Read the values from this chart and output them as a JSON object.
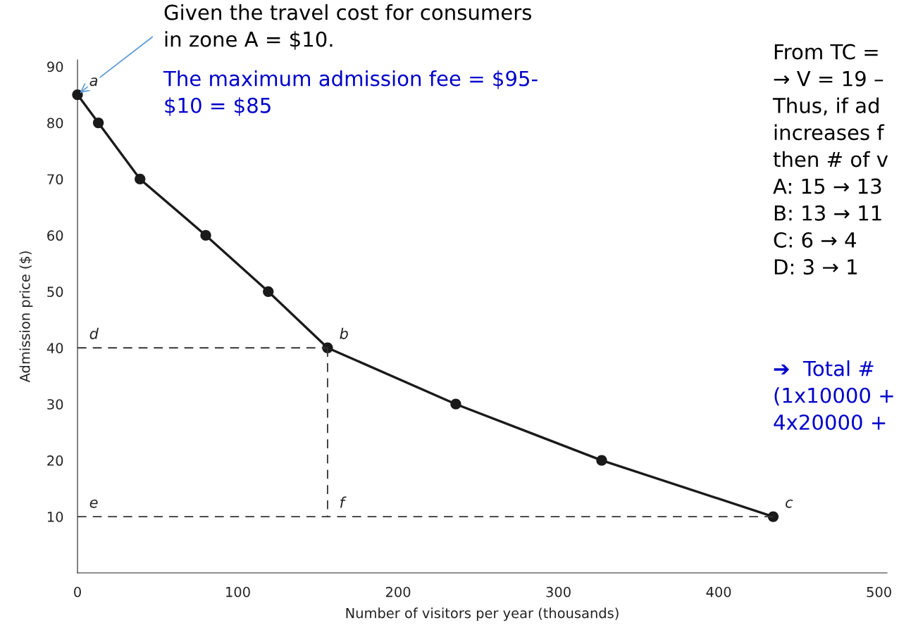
{
  "chart_data": {
    "type": "line",
    "xlabel": "Number of visitors per year (thousands)",
    "ylabel": "Admission price ($)",
    "xlim": [
      0,
      505
    ],
    "ylim": [
      0,
      91.2
    ],
    "xticks": [
      0,
      100,
      200,
      300,
      400,
      500
    ],
    "yticks": [
      10,
      20,
      30,
      40,
      50,
      60,
      70,
      80,
      90
    ],
    "grid": false,
    "legend": false,
    "series": [
      {
        "color": "#1a1a1a",
        "marker": "circle",
        "line_style": "solid",
        "x": [
          0,
          13,
          39,
          80,
          119,
          156,
          236,
          327,
          434
        ],
        "values": [
          85,
          80,
          70,
          60,
          50,
          40,
          30,
          20,
          10
        ]
      },
      {
        "color": "#333333",
        "marker": "none",
        "line_style": "dashed",
        "x": [
          0,
          156
        ],
        "values": [
          40,
          40
        ]
      },
      {
        "color": "#333333",
        "marker": "none",
        "line_style": "dashed",
        "x": [
          156,
          156
        ],
        "values": [
          40,
          10
        ]
      },
      {
        "color": "#333333",
        "marker": "none",
        "line_style": "dashed",
        "x": [
          0,
          434
        ],
        "values": [
          10,
          10
        ]
      }
    ],
    "annotations": [
      {
        "text": "a",
        "x": 0,
        "y": 85
      },
      {
        "text": "b",
        "x": 156,
        "y": 40
      },
      {
        "text": "c",
        "x": 434,
        "y": 10
      },
      {
        "text": "d",
        "x": 0,
        "y": 40
      },
      {
        "text": "e",
        "x": 0,
        "y": 10
      },
      {
        "text": "f",
        "x": 156,
        "y": 10
      },
      {
        "text": "Given the travel cost for consumers\nin zone A = $10.",
        "x": 0,
        "y": 85
      },
      "The maximum admission fee = $95-\n$10 = $85",
      "From TC =\n→ V = 19 –\nThus, if ad\nincreases f\nthen # of v\nA: 15 → 13\nB: 13 → 11\nC: 6 → 4\nD: 3 → 1",
      "➔  Total #\n(1x10000 +\n4x20000 +"
    ]
  }
}
